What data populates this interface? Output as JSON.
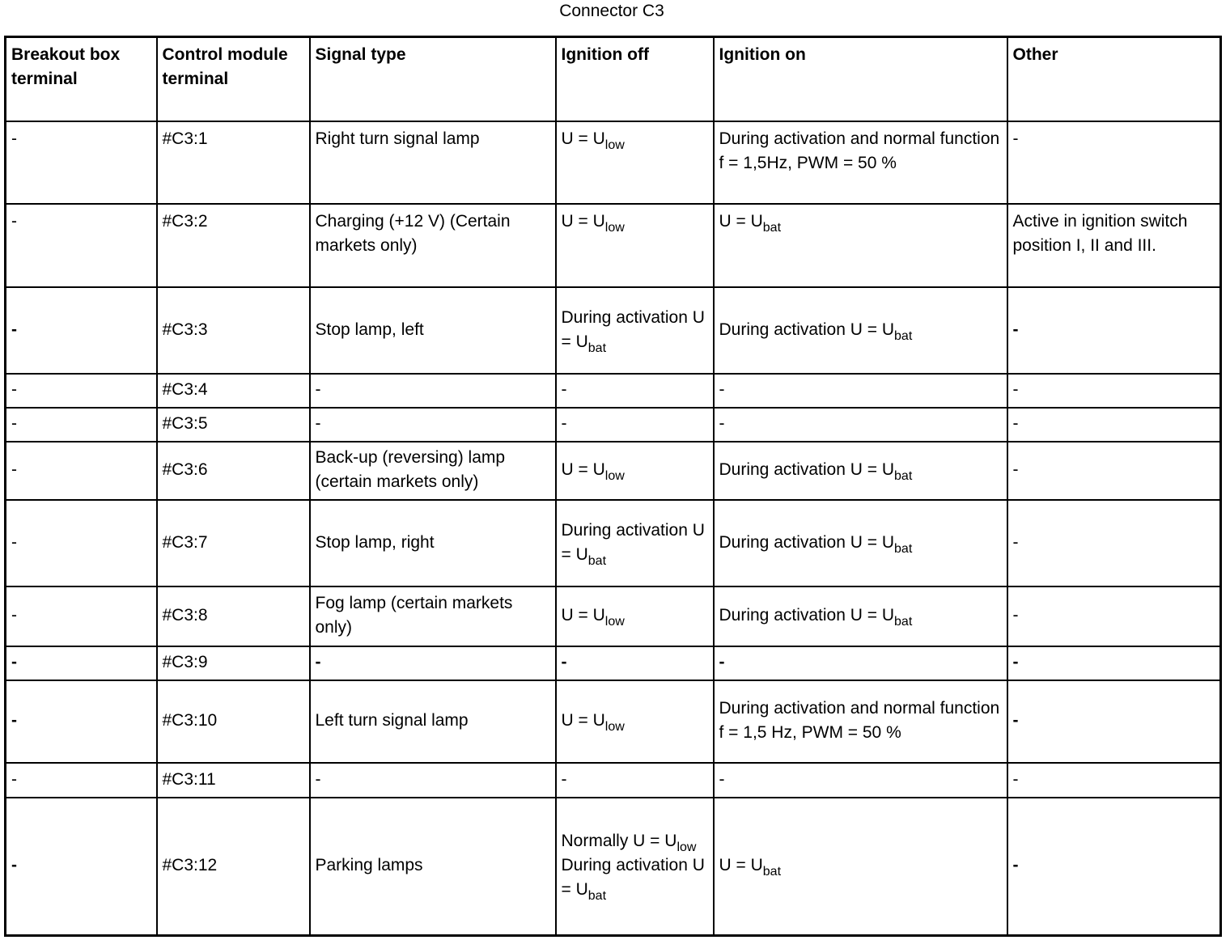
{
  "title": "Connector C3",
  "headers": [
    "Breakout box terminal",
    "Control module terminal",
    "Signal type",
    "Ignition off",
    "Ignition on",
    "Other"
  ],
  "rows": [
    [
      [
        {
          "t": "-"
        }
      ],
      [
        {
          "t": "#C3:1"
        }
      ],
      [
        {
          "t": "Right turn signal lamp"
        }
      ],
      [
        {
          "t": "U = U"
        },
        {
          "sub": "low"
        }
      ],
      [
        {
          "t": "During activation and normal function f = 1,5Hz, PWM = 50 %"
        }
      ],
      [
        {
          "t": "-"
        }
      ]
    ],
    [
      [
        {
          "t": "-"
        }
      ],
      [
        {
          "t": "#C3:2"
        }
      ],
      [
        {
          "t": "Charging (+12 V) (Certain markets only)"
        }
      ],
      [
        {
          "t": "U = U"
        },
        {
          "sub": "low"
        }
      ],
      [
        {
          "t": "U = U"
        },
        {
          "sub": "bat"
        }
      ],
      [
        {
          "t": "Active in ignition switch position I, II and III."
        }
      ]
    ],
    [
      [
        {
          "t": "-",
          "b": true
        }
      ],
      [
        {
          "t": "#C3:3"
        }
      ],
      [
        {
          "t": "Stop lamp, left"
        }
      ],
      [
        {
          "t": "During activation U = U"
        },
        {
          "sub": "bat"
        }
      ],
      [
        {
          "t": "During activation U = U"
        },
        {
          "sub": "bat"
        }
      ],
      [
        {
          "t": "-",
          "b": true
        }
      ]
    ],
    [
      [
        {
          "t": "-"
        }
      ],
      [
        {
          "t": "#C3:4"
        }
      ],
      [
        {
          "t": "-"
        }
      ],
      [
        {
          "t": "-"
        }
      ],
      [
        {
          "t": "-"
        }
      ],
      [
        {
          "t": "-"
        }
      ]
    ],
    [
      [
        {
          "t": "-"
        }
      ],
      [
        {
          "t": "#C3:5"
        }
      ],
      [
        {
          "t": "-"
        }
      ],
      [
        {
          "t": "-"
        }
      ],
      [
        {
          "t": "-"
        }
      ],
      [
        {
          "t": "-"
        }
      ]
    ],
    [
      [
        {
          "t": "-"
        }
      ],
      [
        {
          "t": "#C3:6"
        }
      ],
      [
        {
          "t": "Back-up (reversing) lamp (certain markets only)"
        }
      ],
      [
        {
          "t": "U = U"
        },
        {
          "sub": "low"
        }
      ],
      [
        {
          "t": "During activation U = U"
        },
        {
          "sub": "bat"
        }
      ],
      [
        {
          "t": "-"
        }
      ]
    ],
    [
      [
        {
          "t": "-"
        }
      ],
      [
        {
          "t": "#C3:7"
        }
      ],
      [
        {
          "t": "Stop lamp, right"
        }
      ],
      [
        {
          "t": "During activation U = U"
        },
        {
          "sub": "bat"
        }
      ],
      [
        {
          "t": "During activation U = U"
        },
        {
          "sub": "bat"
        }
      ],
      [
        {
          "t": "-"
        }
      ]
    ],
    [
      [
        {
          "t": "-"
        }
      ],
      [
        {
          "t": "#C3:8"
        }
      ],
      [
        {
          "t": "Fog lamp (certain markets only)"
        }
      ],
      [
        {
          "t": "U = U"
        },
        {
          "sub": "low"
        }
      ],
      [
        {
          "t": "During activation U = U"
        },
        {
          "sub": "bat"
        }
      ],
      [
        {
          "t": "-"
        }
      ]
    ],
    [
      [
        {
          "t": "-",
          "b": true
        }
      ],
      [
        {
          "t": "#C3:9"
        }
      ],
      [
        {
          "t": "-",
          "b": true
        }
      ],
      [
        {
          "t": "-",
          "b": true
        }
      ],
      [
        {
          "t": "-",
          "b": true
        }
      ],
      [
        {
          "t": "-",
          "b": true
        }
      ]
    ],
    [
      [
        {
          "t": "-",
          "b": true
        }
      ],
      [
        {
          "t": "#C3:10"
        }
      ],
      [
        {
          "t": "Left turn signal lamp"
        }
      ],
      [
        {
          "t": "U = U"
        },
        {
          "sub": "low"
        }
      ],
      [
        {
          "t": "During activation and normal function f = 1,5 Hz, PWM = 50 %"
        }
      ],
      [
        {
          "t": "-",
          "b": true
        }
      ]
    ],
    [
      [
        {
          "t": "-"
        }
      ],
      [
        {
          "t": "#C3:11"
        }
      ],
      [
        {
          "t": "-"
        }
      ],
      [
        {
          "t": "-"
        }
      ],
      [
        {
          "t": "-"
        }
      ],
      [
        {
          "t": "-"
        }
      ]
    ],
    [
      [
        {
          "t": "-",
          "b": true
        }
      ],
      [
        {
          "t": "#C3:12"
        }
      ],
      [
        {
          "t": "Parking lamps"
        }
      ],
      [
        {
          "t": "Normally U = U"
        },
        {
          "sub": "low"
        },
        {
          "br": true
        },
        {
          "t": "During activation U = U"
        },
        {
          "sub": "bat"
        }
      ],
      [
        {
          "t": "U = U"
        },
        {
          "sub": "bat"
        }
      ],
      [
        {
          "t": "-",
          "b": true
        }
      ]
    ]
  ]
}
